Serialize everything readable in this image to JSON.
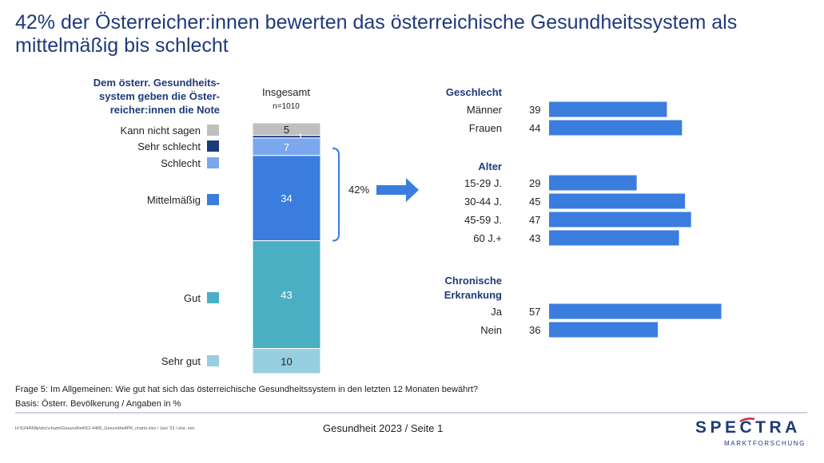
{
  "title": "42% der Österreicher:innen bewerten das österreichische Gesundheitssystem als mittelmäßig bis schlecht",
  "chart_data": [
    {
      "type": "bar",
      "stacked": true,
      "legend_heading": [
        "Dem österr. Gesundheits-",
        "system geben die Öster-",
        "reicher:innen die Note"
      ],
      "column_label": "Insgesamt",
      "n_label": "n=1010",
      "categories": [
        "Kann nicht sagen",
        "Sehr schlecht",
        "Schlecht",
        "Mittelmäßig",
        "Gut",
        "Sehr gut"
      ],
      "values": [
        5,
        1,
        7,
        34,
        43,
        10
      ],
      "colors": [
        "#bfbfbf",
        "#1b3a7a",
        "#7ba7ee",
        "#3a7ddf",
        "#4bafc4",
        "#97cfe0"
      ],
      "bracket_label": "42%",
      "unit": "%"
    },
    {
      "type": "bar",
      "orientation": "horizontal",
      "color": "#3a7ddf",
      "xlim": [
        0,
        60
      ],
      "groups": [
        {
          "title": [
            "Geschlecht"
          ],
          "categories": [
            "Männer",
            "Frauen"
          ],
          "values": [
            39,
            44
          ]
        },
        {
          "title": [
            "Alter"
          ],
          "categories": [
            "15-29 J.",
            "30-44 J.",
            "45-59 J.",
            "60 J.+"
          ],
          "values": [
            29,
            45,
            47,
            43
          ]
        },
        {
          "title": [
            "Chronische",
            "Erkrankung"
          ],
          "categories": [
            "Ja",
            "Nein"
          ],
          "values": [
            57,
            36
          ]
        }
      ]
    }
  ],
  "footer": {
    "question": "Frage 5: Im Allgemeinen: Wie gut hat sich das österreichische Gesundheitssystem in den letzten 12 Monaten bewährt?",
    "basis": "Basis: Österr. Bevölkerung / Angaben in %",
    "file_path": "H:\\5244\\68p\\doc\\charts\\Gesundheit\\52-4468_GesundheitPR_charts.xlsx / Juni '23 / elst, nev",
    "page_label": "Gesundheit 2023  /  Seite 1",
    "logo_text": "SPECTRA",
    "logo_subtext": "MARKTFORSCHUNG"
  }
}
